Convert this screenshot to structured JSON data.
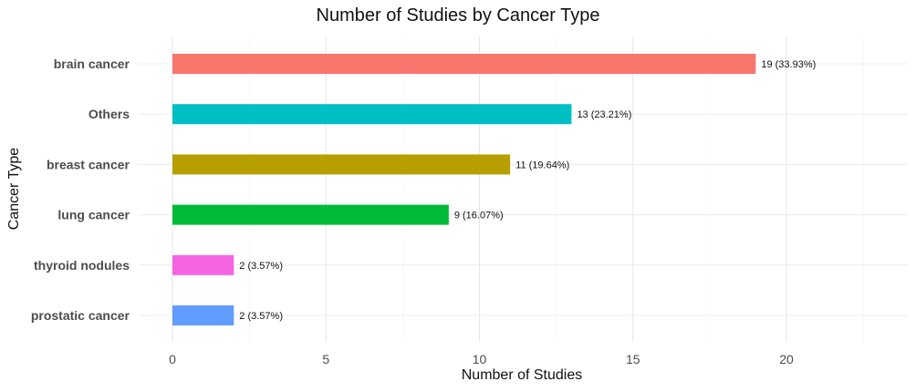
{
  "chart_data": {
    "type": "bar",
    "orientation": "horizontal",
    "title": "Number of Studies by Cancer Type",
    "xlabel": "Number of Studies",
    "ylabel": "Cancer Type",
    "categories": [
      "brain cancer",
      "Others",
      "breast cancer",
      "lung cancer",
      "thyroid nodules",
      "prostatic cancer"
    ],
    "values": [
      19,
      13,
      11,
      9,
      2,
      2
    ],
    "data_labels": [
      "19 (33.93%)",
      "13 (23.21%)",
      "11 (19.64%)",
      "9 (16.07%)",
      "2 (3.57%)",
      "2 (3.57%)"
    ],
    "colors": [
      "#F8766D",
      "#00BFC4",
      "#B79F00",
      "#00BA38",
      "#F564E3",
      "#619CFF"
    ],
    "x_ticks": [
      0,
      5,
      10,
      15,
      20
    ],
    "xlim": [
      0,
      23.5
    ],
    "grid": true,
    "legend": "none"
  }
}
